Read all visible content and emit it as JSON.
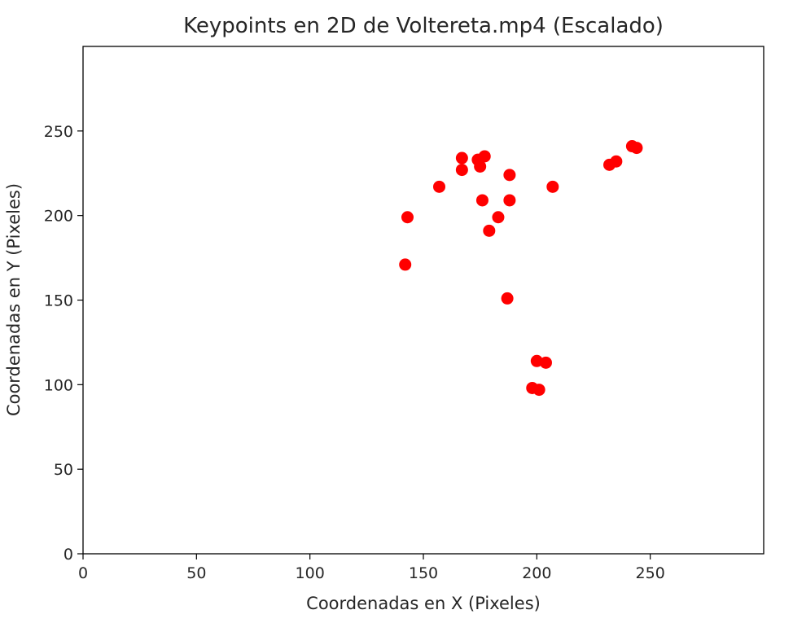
{
  "chart_data": {
    "type": "scatter",
    "title": "Keypoints en 2D de Voltereta.mp4 (Escalado)",
    "xlabel": "Coordenadas en X (Pixeles)",
    "ylabel": "Coordenadas en Y (Pixeles)",
    "xlim": [
      0,
      300
    ],
    "ylim": [
      0,
      300
    ],
    "xticks": [
      0,
      50,
      100,
      150,
      200,
      250
    ],
    "yticks": [
      0,
      50,
      100,
      150,
      200,
      250
    ],
    "grid": false,
    "marker_color": "#ff0000",
    "points": [
      {
        "x": 142,
        "y": 171
      },
      {
        "x": 143,
        "y": 199
      },
      {
        "x": 157,
        "y": 217
      },
      {
        "x": 167,
        "y": 234
      },
      {
        "x": 167,
        "y": 227
      },
      {
        "x": 174,
        "y": 233
      },
      {
        "x": 175,
        "y": 229
      },
      {
        "x": 177,
        "y": 235
      },
      {
        "x": 176,
        "y": 209
      },
      {
        "x": 179,
        "y": 191
      },
      {
        "x": 183,
        "y": 199
      },
      {
        "x": 188,
        "y": 224
      },
      {
        "x": 188,
        "y": 209
      },
      {
        "x": 187,
        "y": 151
      },
      {
        "x": 207,
        "y": 217
      },
      {
        "x": 200,
        "y": 114
      },
      {
        "x": 204,
        "y": 113
      },
      {
        "x": 198,
        "y": 98
      },
      {
        "x": 201,
        "y": 97
      },
      {
        "x": 232,
        "y": 230
      },
      {
        "x": 235,
        "y": 232
      },
      {
        "x": 242,
        "y": 241
      },
      {
        "x": 244,
        "y": 240
      }
    ]
  }
}
